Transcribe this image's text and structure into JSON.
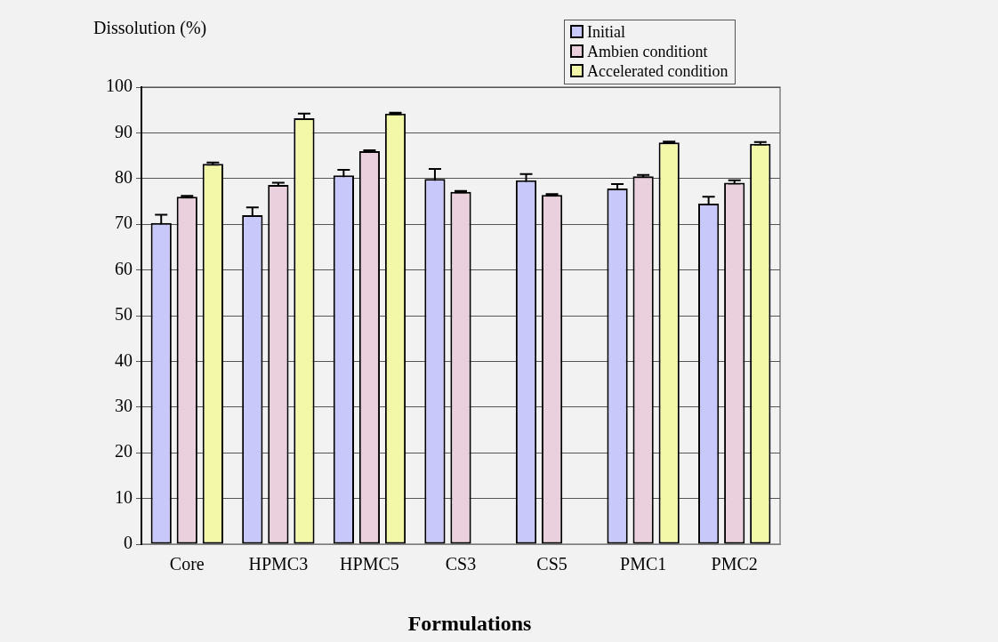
{
  "chart_data": {
    "type": "bar",
    "xlabel": "Formulations",
    "ylabel": "Dissolution (%)",
    "categories": [
      "Core",
      "HPMC3",
      "HPMC5",
      "CS3",
      "CS5",
      "PMC1",
      "PMC2"
    ],
    "series": [
      {
        "name": "Initial",
        "color": "#c8c8fa",
        "values": [
          70.3,
          72.0,
          80.7,
          79.9,
          79.6,
          77.8,
          74.5
        ],
        "errors": [
          1.8,
          1.7,
          1.2,
          2.2,
          1.4,
          1.0,
          1.5
        ]
      },
      {
        "name": "Ambien conditiont",
        "color": "#ead0dc",
        "values": [
          76.0,
          78.6,
          86.0,
          77.1,
          76.4,
          80.5,
          79.1
        ],
        "errors": [
          0.2,
          0.5,
          0.2,
          0.2,
          0.2,
          0.3,
          0.5
        ]
      },
      {
        "name": "Accelerated condition",
        "color": "#f3f7a8",
        "values": [
          83.2,
          93.2,
          94.2,
          null,
          null,
          87.9,
          87.6
        ],
        "errors": [
          0.3,
          1.0,
          0.2,
          null,
          null,
          0.2,
          0.4
        ]
      }
    ],
    "ylim": [
      0,
      100
    ],
    "yticks": [
      0,
      10,
      20,
      30,
      40,
      50,
      60,
      70,
      80,
      90,
      100
    ],
    "grid": "y",
    "legend": "top right"
  }
}
